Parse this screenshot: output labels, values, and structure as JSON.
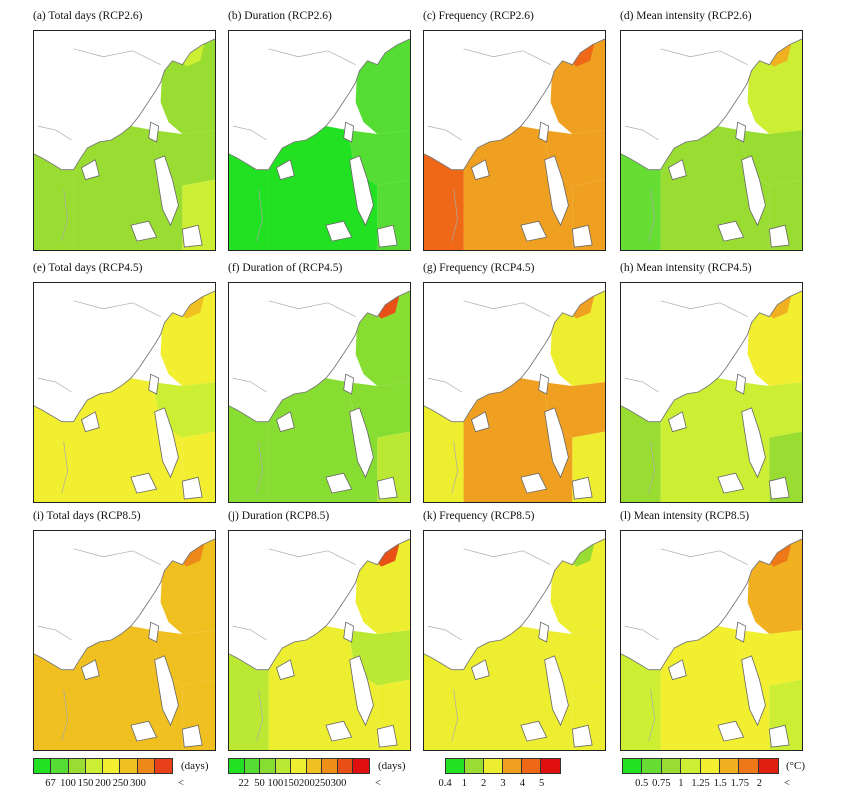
{
  "chart_data": [
    {
      "type": "heatmap",
      "panel": "a",
      "title": "(a) Total days  (RCP2.6)",
      "level_scale": "total_days",
      "levels": {
        "land": "",
        "north": 2,
        "east": 2,
        "scs": 2,
        "south": 3,
        "sw": 2,
        "hot": 3
      }
    },
    {
      "type": "heatmap",
      "panel": "b",
      "title": "(b) Duration  (RCP2.6)",
      "level_scale": "duration",
      "levels": {
        "land": "",
        "north": 1,
        "east": 1,
        "scs": 0,
        "south": 1,
        "sw": 0,
        "hot": 1
      }
    },
    {
      "type": "heatmap",
      "panel": "c",
      "title": "(c) Frequency  (RCP2.6)",
      "level_scale": "frequency",
      "levels": {
        "land": "",
        "north": 3,
        "east": 3,
        "scs": 3,
        "south": 3,
        "sw": 4,
        "hot": 4
      }
    },
    {
      "type": "heatmap",
      "panel": "d",
      "title": "(d) Mean intensity  (RCP2.6)",
      "level_scale": "intensity",
      "levels": {
        "land": "",
        "north": 3,
        "east": 2,
        "scs": 2,
        "south": 2,
        "sw": 1,
        "hot": 5
      }
    },
    {
      "type": "heatmap",
      "panel": "e",
      "title": "(e) Total days  (RCP4.5)",
      "level_scale": "total_days",
      "levels": {
        "land": "",
        "north": 4,
        "east": 3,
        "scs": 4,
        "south": 4,
        "sw": 4,
        "hot": 5
      }
    },
    {
      "type": "heatmap",
      "panel": "f",
      "title": "(f) Duration of (RCP4.5)",
      "level_scale": "duration",
      "levels": {
        "land": "",
        "north": 2,
        "east": 2,
        "scs": 2,
        "south": 3,
        "sw": 2,
        "hot": 7
      }
    },
    {
      "type": "heatmap",
      "panel": "g",
      "title": "(g) Frequency  (RCP4.5)",
      "level_scale": "frequency",
      "levels": {
        "land": "",
        "north": 2,
        "east": 3,
        "scs": 3,
        "south": 2,
        "sw": 2,
        "hot": 3
      }
    },
    {
      "type": "heatmap",
      "panel": "h",
      "title": "(h) Mean intensity  (RCP4.5)",
      "level_scale": "intensity",
      "levels": {
        "land": "",
        "north": 4,
        "east": 3,
        "scs": 3,
        "south": 2,
        "sw": 2,
        "hot": 5
      }
    },
    {
      "type": "heatmap",
      "panel": "i",
      "title": "(i) Total days  (RCP8.5)",
      "level_scale": "total_days",
      "levels": {
        "land": "",
        "north": 5,
        "east": 5,
        "scs": 5,
        "south": 5,
        "sw": 5,
        "hot": 6
      }
    },
    {
      "type": "heatmap",
      "panel": "j",
      "title": "(j) Duration  (RCP8.5)",
      "level_scale": "duration",
      "levels": {
        "land": "",
        "north": 4,
        "east": 3,
        "scs": 4,
        "south": 4,
        "sw": 3,
        "hot": 7
      }
    },
    {
      "type": "heatmap",
      "panel": "k",
      "title": "(k) Frequency  (RCP8.5)",
      "level_scale": "frequency",
      "levels": {
        "land": "",
        "north": 2,
        "east": 2,
        "scs": 2,
        "south": 2,
        "sw": 2,
        "hot": 1
      }
    },
    {
      "type": "heatmap",
      "panel": "l",
      "title": "(l) Mean intensity  (RCP8.5)",
      "level_scale": "intensity",
      "levels": {
        "land": "",
        "north": 5,
        "east": 4,
        "scs": 4,
        "south": 3,
        "sw": 3,
        "hot": 6
      }
    }
  ],
  "colorbars": {
    "total_days": {
      "colors": [
        "#22e022",
        "#55dd33",
        "#99dd33",
        "#ccee33",
        "#f2ee30",
        "#f0c020",
        "#ee8818",
        "#e84018"
      ],
      "ticks": [
        "67",
        "100",
        "150",
        "200",
        "250",
        "300",
        "<"
      ],
      "unit": "(days)"
    },
    "duration": {
      "colors": [
        "#22e022",
        "#55dd33",
        "#88dd33",
        "#bbe833",
        "#eeee30",
        "#f0c020",
        "#ee9018",
        "#e85018",
        "#e01010"
      ],
      "ticks": [
        "22",
        "50",
        "100",
        "150",
        "200",
        "250",
        "300",
        "<"
      ],
      "unit": "(days)"
    },
    "frequency": {
      "colors": [
        "#22e022",
        "#99dd33",
        "#eeee30",
        "#f0a020",
        "#ee6818",
        "#e01010"
      ],
      "ticks": [
        "0.4",
        "1",
        "2",
        "3",
        "4",
        "5"
      ],
      "unit": ""
    },
    "intensity": {
      "colors": [
        "#22e022",
        "#66dd33",
        "#99dd33",
        "#ccee33",
        "#f2ee30",
        "#f0b020",
        "#ee7818",
        "#e02010"
      ],
      "ticks": [
        "0.5",
        "0.75",
        "1",
        "1.25",
        "1.5",
        "1.75",
        "2",
        "<"
      ],
      "unit": "(°C)"
    }
  }
}
